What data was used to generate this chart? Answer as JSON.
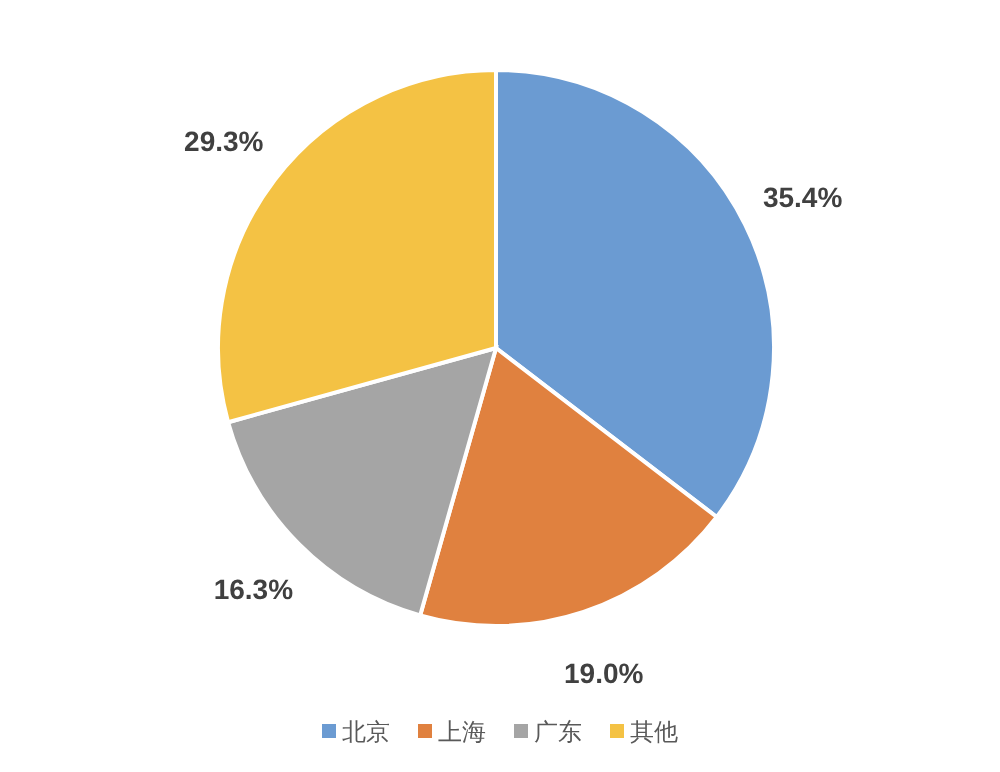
{
  "chart_data": {
    "type": "pie",
    "categories": [
      "北京",
      "上海",
      "广东",
      "其他"
    ],
    "values": [
      35.4,
      19.0,
      16.3,
      29.3
    ],
    "colors": [
      "#6b9bd2",
      "#e0813f",
      "#a5a5a5",
      "#f4c244"
    ],
    "value_labels": [
      "35.4%",
      "19.0%",
      "16.3%",
      "29.3%"
    ],
    "legend": "bottom"
  }
}
